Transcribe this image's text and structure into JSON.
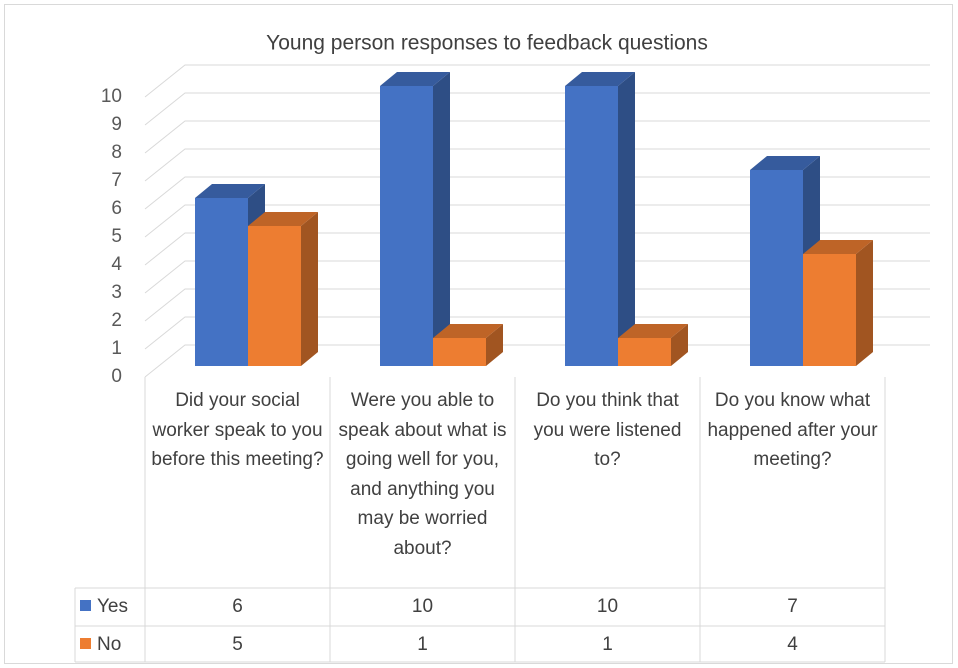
{
  "chart_data": {
    "type": "bar3d",
    "title": "Young person responses to feedback questions",
    "categories": [
      "Did your social worker speak to you before this meeting?",
      "Were you able to speak about what is going well for you, and anything you may be worried about?",
      "Do you think that you were listened to?",
      "Do you know what happened after your meeting?"
    ],
    "series": [
      {
        "name": "Yes",
        "color": "#4472c4",
        "values": [
          6,
          10,
          10,
          7
        ]
      },
      {
        "name": "No",
        "color": "#ed7d31",
        "values": [
          5,
          1,
          1,
          4
        ]
      }
    ],
    "ylim": [
      0,
      10
    ],
    "yticks": [
      0,
      1,
      2,
      3,
      4,
      5,
      6,
      7,
      8,
      9,
      10
    ],
    "grid": true,
    "data_table": true
  }
}
